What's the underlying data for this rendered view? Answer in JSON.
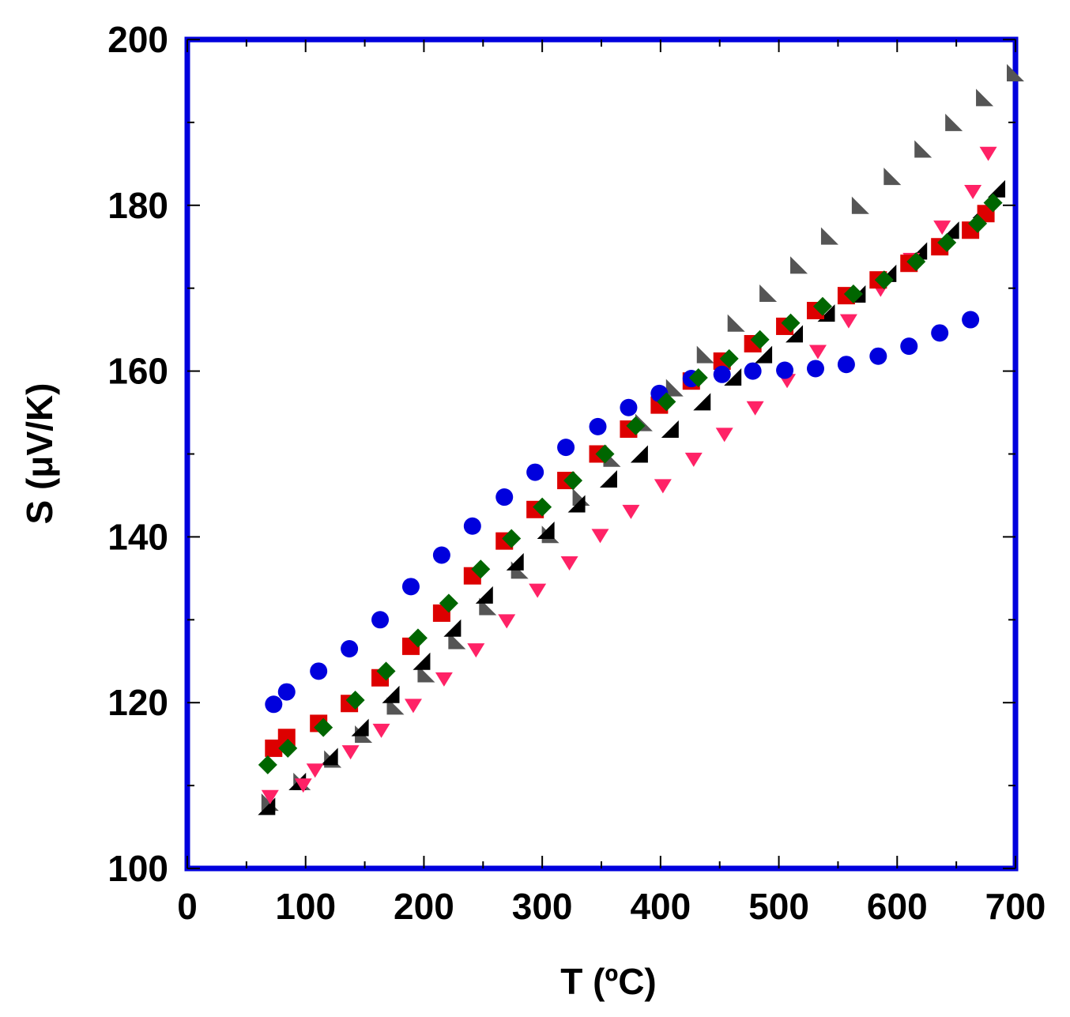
{
  "chart_data": {
    "type": "scatter",
    "title": "",
    "xlabel": "T (ºC)",
    "ylabel": "S (μV/K)",
    "xlim": [
      0,
      700
    ],
    "ylim": [
      100,
      200
    ],
    "xticks": [
      "0",
      "100",
      "200",
      "300",
      "400",
      "500",
      "600",
      "700"
    ],
    "yticks": [
      "100",
      "120",
      "140",
      "160",
      "180",
      "200"
    ],
    "grid": false,
    "frame_color": "#0000dd",
    "series": [
      {
        "marker": "circle",
        "color": "#0000dd",
        "points": [
          [
            73,
            119.8
          ],
          [
            84,
            121.3
          ],
          [
            111,
            123.8
          ],
          [
            137,
            126.5
          ],
          [
            163,
            130
          ],
          [
            189,
            134
          ],
          [
            215,
            137.8
          ],
          [
            241,
            141.3
          ],
          [
            268,
            144.8
          ],
          [
            294,
            147.8
          ],
          [
            320,
            150.8
          ],
          [
            347,
            153.3
          ],
          [
            373,
            155.6
          ],
          [
            399,
            157.3
          ],
          [
            426,
            159.1
          ],
          [
            452,
            159.6
          ],
          [
            478,
            160
          ],
          [
            505,
            160.1
          ],
          [
            531,
            160.3
          ],
          [
            557,
            160.8
          ],
          [
            584,
            161.8
          ],
          [
            610,
            163
          ],
          [
            636,
            164.6
          ],
          [
            662,
            166.2
          ]
        ]
      },
      {
        "marker": "square",
        "color": "#dd0000",
        "points": [
          [
            73,
            114.5
          ],
          [
            84,
            115.8
          ],
          [
            111,
            117.5
          ],
          [
            137,
            119.9
          ],
          [
            163,
            123
          ],
          [
            189,
            126.8
          ],
          [
            215,
            130.8
          ],
          [
            241,
            135.3
          ],
          [
            268,
            139.5
          ],
          [
            294,
            143.3
          ],
          [
            320,
            146.8
          ],
          [
            347,
            150
          ],
          [
            373,
            153
          ],
          [
            399,
            155.9
          ],
          [
            426,
            158.8
          ],
          [
            452,
            161.2
          ],
          [
            478,
            163.3
          ],
          [
            505,
            165.4
          ],
          [
            531,
            167.3
          ],
          [
            557,
            169.1
          ],
          [
            584,
            171
          ],
          [
            610,
            173
          ],
          [
            636,
            175
          ],
          [
            662,
            177
          ],
          [
            675,
            179
          ]
        ]
      },
      {
        "marker": "diamond",
        "color": "#006600",
        "points": [
          [
            68,
            112.5
          ],
          [
            85,
            114.5
          ],
          [
            115,
            117
          ],
          [
            142,
            120.3
          ],
          [
            168,
            123.8
          ],
          [
            195,
            127.8
          ],
          [
            221,
            132
          ],
          [
            248,
            136.1
          ],
          [
            274,
            139.8
          ],
          [
            300,
            143.6
          ],
          [
            326,
            146.8
          ],
          [
            353,
            150
          ],
          [
            379,
            153.4
          ],
          [
            405,
            156.3
          ],
          [
            432,
            159.2
          ],
          [
            458,
            161.5
          ],
          [
            484,
            163.8
          ],
          [
            510,
            165.8
          ],
          [
            537,
            167.8
          ],
          [
            563,
            169.3
          ],
          [
            589,
            171
          ],
          [
            616,
            173.2
          ],
          [
            642,
            175.5
          ],
          [
            668,
            177.8
          ],
          [
            681,
            180.3
          ]
        ]
      },
      {
        "marker": "triangle-down",
        "color": "#ff2266",
        "points": [
          [
            70,
            108.6
          ],
          [
            98,
            110
          ],
          [
            108,
            111.8
          ],
          [
            138,
            114
          ],
          [
            164,
            116.6
          ],
          [
            191,
            119.6
          ],
          [
            217,
            122.8
          ],
          [
            244,
            126.3
          ],
          [
            270,
            129.8
          ],
          [
            296,
            133.5
          ],
          [
            323,
            136.8
          ],
          [
            349,
            140.1
          ],
          [
            375,
            143
          ],
          [
            402,
            146.1
          ],
          [
            428,
            149.3
          ],
          [
            454,
            152.3
          ],
          [
            480,
            155.5
          ],
          [
            507,
            158.8
          ],
          [
            533,
            162.3
          ],
          [
            559,
            166
          ],
          [
            586,
            169.8
          ],
          [
            612,
            173.4
          ],
          [
            638,
            177.3
          ],
          [
            664,
            181.6
          ],
          [
            677,
            186.2
          ]
        ]
      },
      {
        "marker": "right-triangle-black",
        "color": "#000000",
        "points": [
          [
            67,
            107.5
          ],
          [
            93,
            110.5
          ],
          [
            120,
            113.5
          ],
          [
            146,
            117
          ],
          [
            172,
            121
          ],
          [
            198,
            125
          ],
          [
            224,
            129
          ],
          [
            251,
            133
          ],
          [
            277,
            137
          ],
          [
            303,
            140.8
          ],
          [
            329,
            144
          ],
          [
            356,
            147
          ],
          [
            382,
            150
          ],
          [
            408,
            153
          ],
          [
            435,
            156.3
          ],
          [
            461,
            159.3
          ],
          [
            487,
            162
          ],
          [
            513,
            164.5
          ],
          [
            540,
            167
          ],
          [
            566,
            169.3
          ],
          [
            592,
            171.8
          ],
          [
            618,
            174.5
          ],
          [
            645,
            177
          ],
          [
            671,
            179.5
          ],
          [
            684,
            182
          ]
        ]
      },
      {
        "marker": "right-triangle-gray",
        "color": "#555555",
        "points": [
          [
            70,
            108
          ],
          [
            97,
            110.5
          ],
          [
            123,
            113.2
          ],
          [
            149,
            116.2
          ],
          [
            176,
            119.6
          ],
          [
            202,
            123.5
          ],
          [
            228,
            127.5
          ],
          [
            254,
            131.6
          ],
          [
            281,
            136
          ],
          [
            307,
            140.3
          ],
          [
            333,
            144.8
          ],
          [
            359,
            149.5
          ],
          [
            386,
            153.8
          ],
          [
            412,
            158
          ],
          [
            438,
            162
          ],
          [
            464,
            165.8
          ],
          [
            491,
            169.4
          ],
          [
            517,
            172.8
          ],
          [
            543,
            176.3
          ],
          [
            569,
            180
          ],
          [
            596,
            183.5
          ],
          [
            622,
            186.8
          ],
          [
            648,
            190
          ],
          [
            674,
            193
          ],
          [
            700,
            196
          ]
        ]
      }
    ]
  }
}
